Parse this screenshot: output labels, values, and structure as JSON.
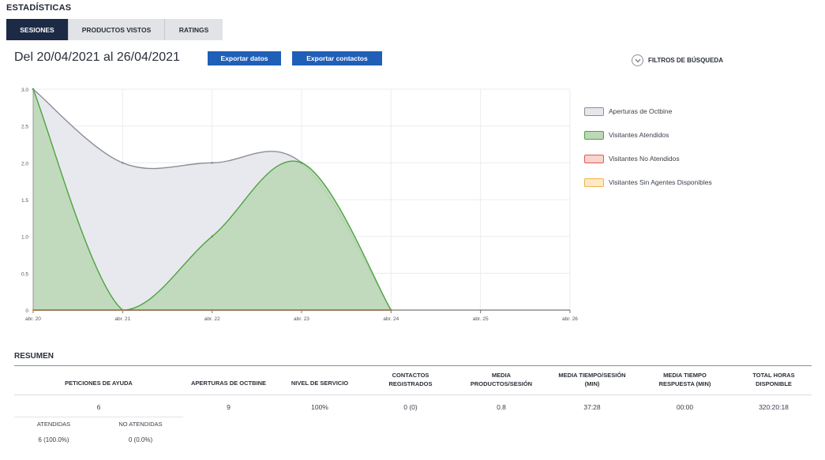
{
  "page": {
    "title": "ESTADÍSTICAS"
  },
  "tabs": [
    {
      "label": "SESIONES",
      "active": true
    },
    {
      "label": "PRODUCTOS VISTOS",
      "active": false
    },
    {
      "label": "RATINGS",
      "active": false
    }
  ],
  "date_range": "Del 20/04/2021 al 26/04/2021",
  "buttons": {
    "export_data": "Exportar datos",
    "export_contacts": "Exportar contactos"
  },
  "filters": {
    "label": "FILTROS DE BÚSQUEDA",
    "icon": "chevron-down-icon"
  },
  "chart_data": {
    "type": "area",
    "categories": [
      "abr. 20",
      "abr. 21",
      "abr. 22",
      "abr. 23",
      "abr. 24",
      "abr. 25",
      "abr. 26"
    ],
    "ylim": [
      0,
      3.0
    ],
    "yticks": [
      "0",
      "0.5",
      "1.0",
      "1.5",
      "2.0",
      "2.5",
      "3.0"
    ],
    "grid": true,
    "legend_position": "right",
    "series": [
      {
        "name": "Aperturas de Octbine",
        "values": [
          3,
          2,
          2,
          2,
          0,
          null,
          null
        ],
        "color": "#8c8e98",
        "fill": "#e6e7ec"
      },
      {
        "name": "Visitantes Atendidos",
        "values": [
          3,
          0,
          1,
          2,
          0,
          null,
          null
        ],
        "color": "#4ca33f",
        "fill": "#bcd8b7"
      },
      {
        "name": "Visitantes No Atendidos",
        "values": [
          0,
          0,
          0,
          0,
          0,
          null,
          null
        ],
        "color": "#e05a4a",
        "fill": "#f8d3d0"
      },
      {
        "name": "Visitantes Sin Agentes Disponibles",
        "values": [
          0,
          0,
          0,
          0,
          0,
          null,
          null
        ],
        "color": "#f0b14a",
        "fill": "#fde8c8"
      }
    ]
  },
  "summary": {
    "title": "RESUMEN",
    "headers": {
      "peticiones": "PETICIONES DE AYUDA",
      "aperturas": "APERTURAS DE OCTBINE",
      "nivel": "NIVEL DE SERVICIO",
      "contactos": "CONTACTOS\nREGISTRADOS",
      "media_productos": "MEDIA\nPRODUCTOS/SESIÓN",
      "media_tiempo_sesion": "MEDIA TIEMPO/SESIÓN\n(MIN)",
      "media_tiempo_respuesta": "MEDIA TIEMPO\nRESPUESTA (MIN)",
      "total_horas": "TOTAL HORAS\nDISPONIBLE"
    },
    "values": {
      "peticiones": "6",
      "aperturas": "9",
      "nivel": "100%",
      "contactos": "0 (0)",
      "media_productos": "0.8",
      "media_tiempo_sesion": "37:28",
      "media_tiempo_respuesta": "00:00",
      "total_horas": "320:20:18"
    },
    "sub": {
      "atendidas_label": "ATENDIDAS",
      "no_atendidas_label": "NO ATENDIDAS",
      "atendidas_value": "6 (100.0%)",
      "no_atendidas_value": "0 (0.0%)"
    }
  }
}
